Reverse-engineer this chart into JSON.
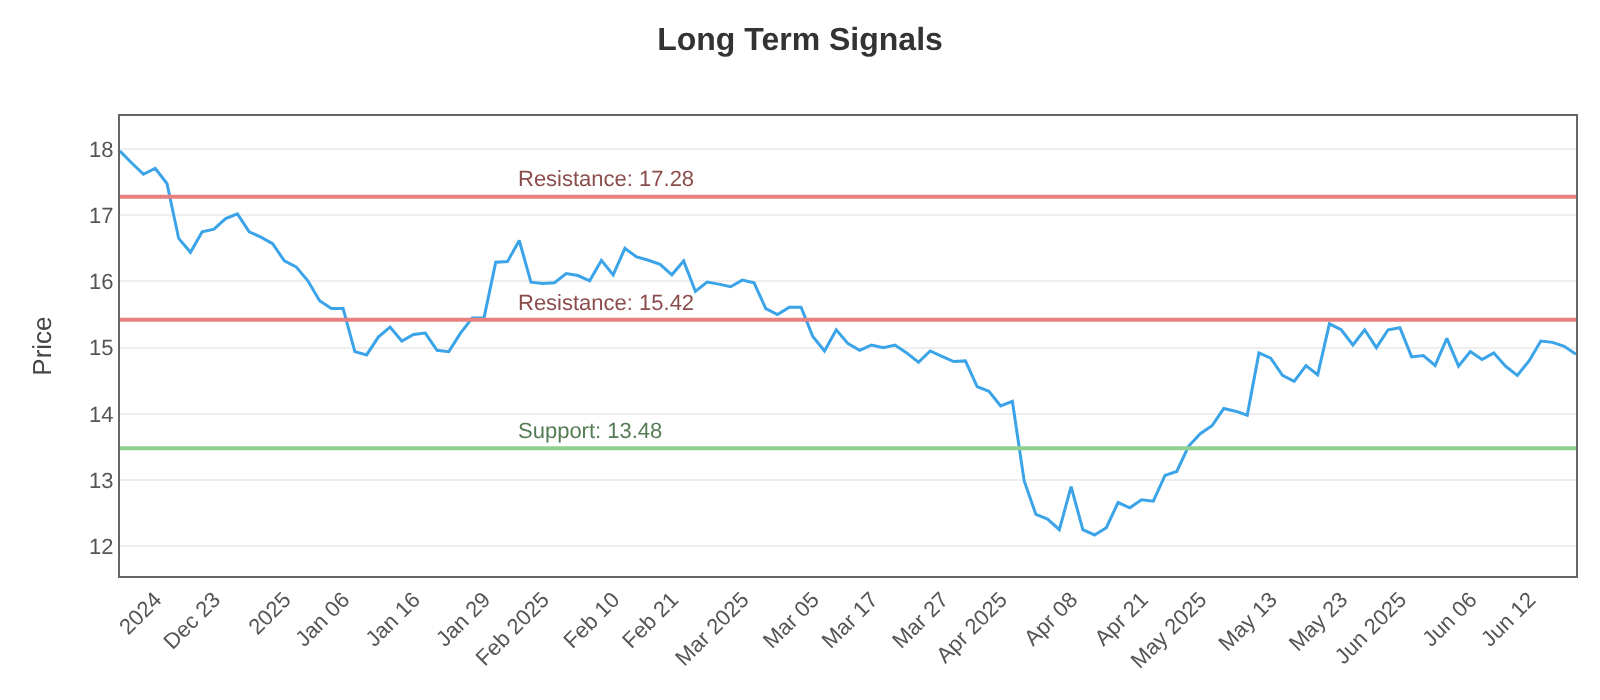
{
  "chart_data": {
    "type": "line",
    "title": "Long Term Signals",
    "ylabel": "Price",
    "categories": [
      null,
      null,
      null,
      "2024",
      null,
      null,
      null,
      null,
      "Dec 23",
      null,
      null,
      null,
      null,
      null,
      "2025",
      null,
      null,
      null,
      null,
      "Jan 06",
      null,
      null,
      null,
      null,
      null,
      "Jan 16",
      null,
      null,
      null,
      null,
      null,
      "Jan 29",
      null,
      null,
      null,
      null,
      "Feb 2025",
      null,
      null,
      null,
      null,
      null,
      "Feb 10",
      null,
      null,
      null,
      null,
      "Feb 21",
      null,
      null,
      null,
      null,
      null,
      "Mar 2025",
      null,
      null,
      null,
      null,
      null,
      "Mar 05",
      null,
      null,
      null,
      null,
      "Mar 17",
      null,
      null,
      null,
      null,
      null,
      "Mar 27",
      null,
      null,
      null,
      null,
      "Apr 2025",
      null,
      null,
      null,
      null,
      null,
      "Apr 08",
      null,
      null,
      null,
      null,
      null,
      "Apr 21",
      null,
      null,
      null,
      null,
      "May 2025",
      null,
      null,
      null,
      null,
      null,
      "May 13",
      null,
      null,
      null,
      null,
      null,
      "May 23",
      null,
      null,
      null,
      null,
      "Jun 2025",
      null,
      null,
      null,
      null,
      null,
      "Jun 06",
      null,
      null,
      null,
      null,
      "Jun 12",
      null,
      null,
      null,
      null
    ],
    "series": [
      {
        "color": "#3ba3e8",
        "values": [
          17.97,
          17.79,
          17.62,
          17.71,
          17.48,
          16.65,
          16.44,
          16.75,
          16.79,
          16.95,
          17.02,
          16.75,
          16.67,
          16.57,
          16.31,
          16.22,
          16.01,
          15.71,
          15.59,
          15.59,
          14.94,
          14.89,
          15.16,
          15.31,
          15.1,
          15.2,
          15.22,
          14.96,
          14.94,
          15.22,
          15.45,
          15.45,
          16.29,
          16.3,
          16.62,
          15.99,
          15.97,
          15.98,
          16.12,
          16.09,
          16.01,
          16.32,
          16.1,
          16.5,
          16.37,
          16.32,
          16.26,
          16.1,
          16.31,
          15.85,
          15.99,
          15.96,
          15.92,
          16.02,
          15.98,
          15.59,
          15.5,
          15.61,
          15.61,
          15.17,
          14.95,
          15.27,
          15.06,
          14.96,
          15.04,
          15.0,
          15.04,
          14.92,
          14.78,
          14.95,
          14.87,
          14.79,
          14.8,
          14.41,
          14.34,
          14.12,
          14.19,
          12.99,
          12.48,
          12.41,
          12.25,
          12.9,
          12.25,
          12.17,
          12.28,
          12.66,
          12.58,
          12.7,
          12.68,
          13.07,
          13.13,
          13.51,
          13.7,
          13.82,
          14.08,
          14.04,
          13.98,
          14.92,
          14.84,
          14.58,
          14.49,
          14.73,
          14.59,
          15.36,
          15.27,
          15.04,
          15.27,
          15.0,
          15.27,
          15.3,
          14.86,
          14.88,
          14.73,
          15.14,
          14.72,
          14.94,
          14.82,
          14.92,
          14.72,
          14.58,
          14.8,
          15.1,
          15.08,
          15.02,
          14.9
        ]
      }
    ],
    "ref_lines": [
      {
        "axis": "y",
        "value": 17.28,
        "label": "Resistance: 17.28",
        "color": "#e88080"
      },
      {
        "axis": "y",
        "value": 15.42,
        "label": "Resistance: 15.42",
        "color": "#e88080"
      },
      {
        "axis": "y",
        "value": 13.48,
        "label": "Support: 13.48",
        "color": "#8fcf8f"
      }
    ],
    "ylim": [
      11.55,
      18.5
    ],
    "yticks": [
      12,
      13,
      14,
      15,
      16,
      17,
      18
    ],
    "grid": "y",
    "marker": "none",
    "line_style": "solid"
  }
}
